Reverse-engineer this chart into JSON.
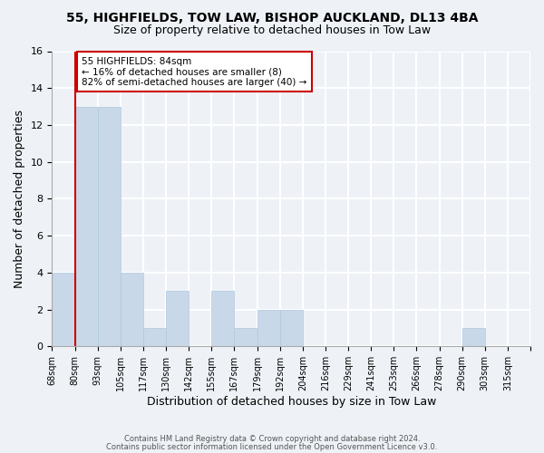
{
  "title": "55, HIGHFIELDS, TOW LAW, BISHOP AUCKLAND, DL13 4BA",
  "subtitle": "Size of property relative to detached houses in Tow Law",
  "xlabel": "Distribution of detached houses by size in Tow Law",
  "ylabel": "Number of detached properties",
  "bar_color": "#c8d8e8",
  "bar_edge_color": "#b0c8e0",
  "bin_labels": [
    "68sqm",
    "80sqm",
    "93sqm",
    "105sqm",
    "117sqm",
    "130sqm",
    "142sqm",
    "155sqm",
    "167sqm",
    "179sqm",
    "192sqm",
    "204sqm",
    "216sqm",
    "229sqm",
    "241sqm",
    "253sqm",
    "266sqm",
    "278sqm",
    "290sqm",
    "303sqm",
    "315sqm"
  ],
  "bar_values": [
    4,
    13,
    13,
    4,
    1,
    3,
    0,
    3,
    1,
    2,
    2,
    0,
    0,
    0,
    0,
    0,
    0,
    0,
    1,
    0,
    0
  ],
  "ylim": [
    0,
    16
  ],
  "yticks": [
    0,
    2,
    4,
    6,
    8,
    10,
    12,
    14,
    16
  ],
  "red_line_x": 1,
  "annotation_text": "55 HIGHFIELDS: 84sqm\n← 16% of detached houses are smaller (8)\n82% of semi-detached houses are larger (40) →",
  "annotation_box_color": "#ffffff",
  "annotation_box_edge_color": "#cc0000",
  "footer_line1": "Contains HM Land Registry data © Crown copyright and database right 2024.",
  "footer_line2": "Contains public sector information licensed under the Open Government Licence v3.0.",
  "background_color": "#eef2f7",
  "grid_color": "#ffffff"
}
